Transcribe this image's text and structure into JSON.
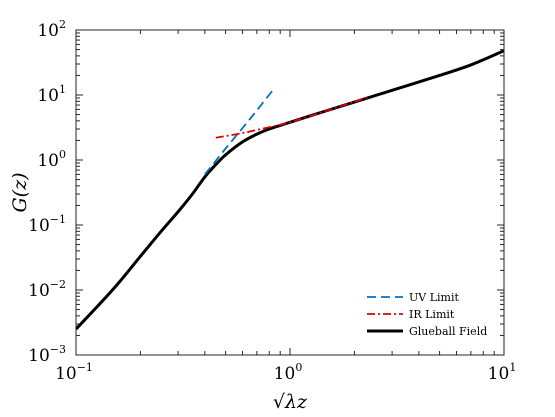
{
  "chart_data": {
    "type": "line",
    "xscale": "log",
    "yscale": "log",
    "xlim": [
      0.1,
      10
    ],
    "ylim": [
      0.001,
      100
    ],
    "xlabel": "√λz",
    "ylabel": "G(z)",
    "grid": false,
    "legend_position": "bottom-right",
    "x_ticks": [
      {
        "base": "10",
        "exp": "−1",
        "value": 0.1
      },
      {
        "base": "10",
        "exp": "0",
        "value": 1
      },
      {
        "base": "10",
        "exp": "1",
        "value": 10
      }
    ],
    "y_ticks": [
      {
        "base": "10",
        "exp": "−3",
        "value": 0.001
      },
      {
        "base": "10",
        "exp": "−2",
        "value": 0.01
      },
      {
        "base": "10",
        "exp": "−1",
        "value": 0.1
      },
      {
        "base": "10",
        "exp": "0",
        "value": 1
      },
      {
        "base": "10",
        "exp": "1",
        "value": 10
      },
      {
        "base": "10",
        "exp": "2",
        "value": 100
      }
    ],
    "series": [
      {
        "name": "UV Limit",
        "color": "#0072BD",
        "dash": "dashed",
        "x": [
          0.4,
          0.5,
          0.6,
          0.7,
          0.85
        ],
        "y": [
          0.6,
          1.5,
          3.1,
          5.8,
          13
        ]
      },
      {
        "name": "IR Limit",
        "color": "#e00000",
        "dash": "dashdot",
        "x": [
          0.45,
          0.6,
          0.8,
          1.0,
          1.5,
          2.0,
          2.3
        ],
        "y": [
          2.2,
          2.6,
          3.2,
          3.8,
          5.8,
          7.9,
          9.2
        ]
      },
      {
        "name": "Glueball Field",
        "color": "#000000",
        "dash": "solid",
        "x": [
          0.1,
          0.15,
          0.2,
          0.25,
          0.3,
          0.35,
          0.4,
          0.45,
          0.5,
          0.6,
          0.7,
          0.8,
          1.0,
          1.5,
          2.0,
          3.0,
          5.0,
          7.0,
          10.0
        ],
        "y": [
          0.0025,
          0.0105,
          0.033,
          0.08,
          0.16,
          0.3,
          0.55,
          0.85,
          1.2,
          1.9,
          2.5,
          3.0,
          3.8,
          5.8,
          7.8,
          11.8,
          20,
          29,
          48
        ]
      }
    ]
  }
}
